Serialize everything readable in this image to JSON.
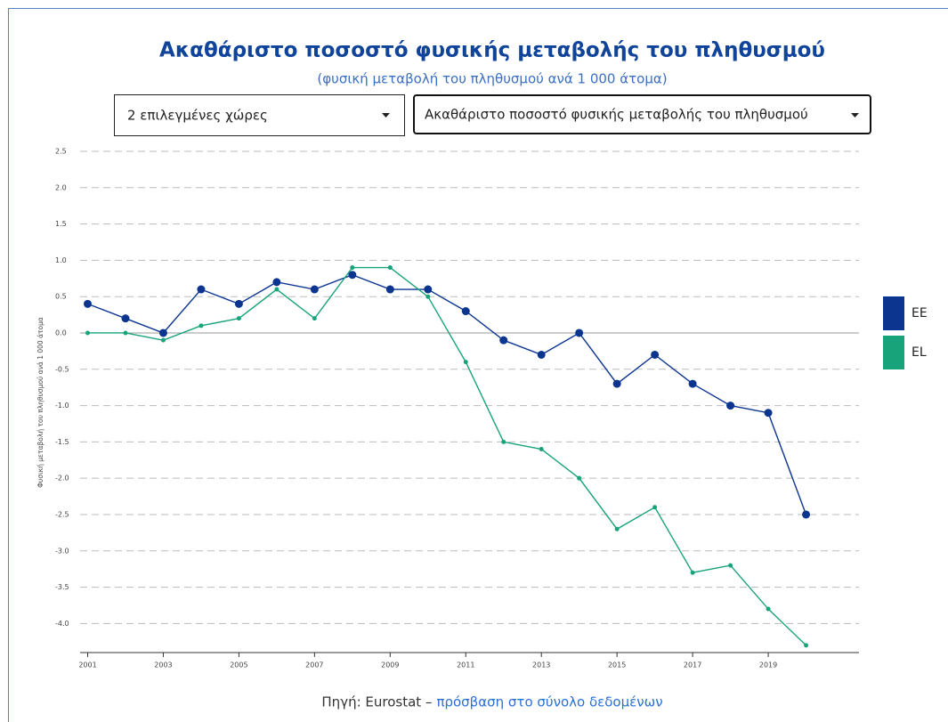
{
  "chart_data": {
    "type": "line",
    "title": "Ακαθάριστο ποσοστό φυσικής μεταβολής του πληθυσμού",
    "subtitle": "(φυσική μεταβολή του πληθυσμού ανά 1 000 άτομα)",
    "controls": [
      "2 επιλεγμένες χώρες",
      "Ακαθάριστο ποσοστό φυσικής μεταβολής του πληθυσμού"
    ],
    "y_label": "Φυσική μεταβολή του πληθυσμού ανά 1 000 άτομα",
    "source": "Πηγή: Eurostat –",
    "source_link": "πρόσβαση στο σύνολο δεδομένων",
    "x": [
      2001,
      2002,
      2003,
      2004,
      2005,
      2006,
      2007,
      2008,
      2009,
      2010,
      2011,
      2012,
      2013,
      2014,
      2015,
      2016,
      2017,
      2018,
      2019,
      2020
    ],
    "series": [
      {
        "name": "EE",
        "color": "#0c3590",
        "values": [
          0.4,
          0.2,
          0.0,
          0.6,
          0.4,
          0.7,
          0.6,
          0.8,
          0.6,
          0.6,
          0.3,
          -0.1,
          -0.3,
          0.0,
          -0.7,
          -0.3,
          -0.7,
          -1.0,
          -1.1,
          -2.5
        ]
      },
      {
        "name": "EL",
        "color": "#18a37b",
        "values": [
          0.0,
          0.0,
          -0.1,
          0.1,
          0.2,
          0.6,
          0.2,
          0.9,
          0.9,
          0.5,
          -0.4,
          -1.5,
          -1.6,
          -2.0,
          -2.7,
          -2.4,
          -3.3,
          -3.2,
          -3.8,
          -4.3
        ]
      }
    ],
    "xlim": [
      2000.8,
      2021.4
    ],
    "xticks": [
      2001,
      2003,
      2005,
      2007,
      2009,
      2011,
      2013,
      2015,
      2017,
      2019
    ],
    "ylim": [
      -4.4,
      2.5
    ],
    "yticks": [
      2.5,
      {
        "value": 2,
        "label": "2.0"
      },
      1.5,
      {
        "value": 1,
        "label": "1.0"
      },
      0.5,
      {
        "value": 0,
        "label": "0.0"
      },
      -0.5,
      {
        "value": -1,
        "label": "-1.0"
      },
      -1.5,
      {
        "value": -2,
        "label": "-2.0"
      },
      -2.5,
      {
        "value": -3,
        "label": "-3.0"
      },
      -3.5,
      {
        "value": -4,
        "label": "-4.0"
      }
    ],
    "grid": true,
    "legend": "right"
  }
}
